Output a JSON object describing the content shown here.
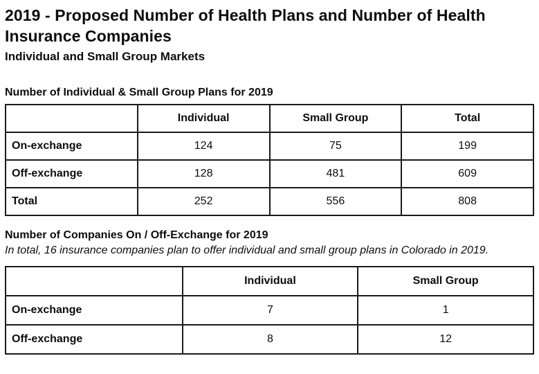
{
  "page": {
    "title": "2019 - Proposed Number of Health Plans and Number of Health Insurance Companies",
    "subtitle": "Individual and Small Group Markets"
  },
  "plans_section": {
    "heading": "Number of Individual & Small Group Plans for 2019",
    "table": {
      "columns": [
        "",
        "Individual",
        "Small Group",
        "Total"
      ],
      "rows": [
        {
          "label": "On-exchange",
          "values": [
            "124",
            "75",
            "199"
          ]
        },
        {
          "label": "Off-exchange",
          "values": [
            "128",
            "481",
            "609"
          ]
        },
        {
          "label": "Total",
          "values": [
            "252",
            "556",
            "808"
          ]
        }
      ]
    }
  },
  "companies_section": {
    "heading": "Number of Companies On / Off-Exchange for 2019",
    "note": "In total, 16 insurance companies plan to offer individual and small group plans in Colorado in 2019.",
    "table": {
      "columns": [
        "",
        "Individual",
        "Small Group"
      ],
      "rows": [
        {
          "label": "On-exchange",
          "values": [
            "7",
            "1"
          ]
        },
        {
          "label": "Off-exchange",
          "values": [
            "8",
            "12"
          ]
        }
      ]
    }
  },
  "colors": {
    "text": "#0d0d0d",
    "border": "#1a1a1a",
    "background": "#ffffff"
  }
}
